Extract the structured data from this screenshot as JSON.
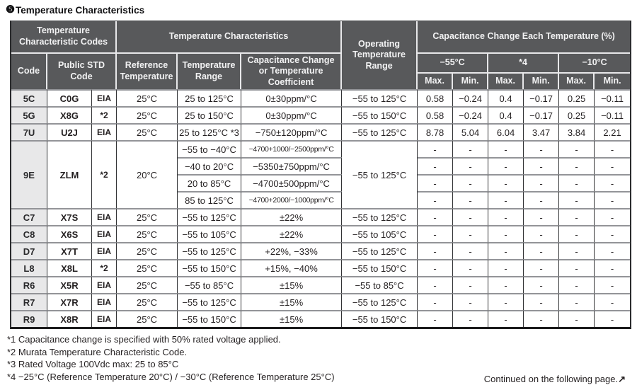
{
  "title": {
    "marker": "❺",
    "text": "Temperature Characteristics"
  },
  "table": {
    "header": {
      "codes_group": "Temperature Characteristic Codes",
      "characteristics_group": "Temperature Characteristics",
      "operating": "Operating Temperature Range",
      "cap_change_group": "Capacitance Change Each Temperature (%)",
      "code": "Code",
      "public_std_code": "Public STD Code",
      "reference_temperature": "Reference Temperature",
      "temperature_range": "Temperature Range",
      "cap_change_or_coeff": "Capacitance Change or Temperature Coefficient",
      "temp_cols": [
        "−55°C",
        "*4",
        "−10°C"
      ],
      "max_label": "Max.",
      "min_label": "Min."
    },
    "rows": [
      {
        "code": "5C",
        "std": "C0G",
        "mark": "EIA",
        "ref": "25°C",
        "op": "−55 to 125°C",
        "sub": [
          {
            "range": "25 to 125°C",
            "coeff": "0±30ppm/°C",
            "vals": [
              "0.58",
              "−0.24",
              "0.4",
              "−0.17",
              "0.25",
              "−0.11"
            ]
          }
        ]
      },
      {
        "code": "5G",
        "std": "X8G",
        "mark": "*2",
        "ref": "25°C",
        "op": "−55 to 150°C",
        "sub": [
          {
            "range": "25 to 150°C",
            "coeff": "0±30ppm/°C",
            "vals": [
              "0.58",
              "−0.24",
              "0.4",
              "−0.17",
              "0.25",
              "−0.11"
            ]
          }
        ]
      },
      {
        "code": "7U",
        "std": "U2J",
        "mark": "EIA",
        "ref": "25°C",
        "op": "−55 to 125°C",
        "sub": [
          {
            "range": "25 to 125°C *3",
            "coeff": "−750±120ppm/°C",
            "vals": [
              "8.78",
              "5.04",
              "6.04",
              "3.47",
              "3.84",
              "2.21"
            ]
          }
        ]
      },
      {
        "code": "9E",
        "std": "ZLM",
        "mark": "*2",
        "ref": "20°C",
        "op": "−55 to 125°C",
        "sub": [
          {
            "range": "−55 to −40°C",
            "coeff": "−4700+1000/−2500ppm/°C",
            "vals": [
              "-",
              "-",
              "-",
              "-",
              "-",
              "-"
            ]
          },
          {
            "range": "−40 to 20°C",
            "coeff": "−5350±750ppm/°C",
            "vals": [
              "-",
              "-",
              "-",
              "-",
              "-",
              "-"
            ]
          },
          {
            "range": "20 to 85°C",
            "coeff": "−4700±500ppm/°C",
            "vals": [
              "-",
              "-",
              "-",
              "-",
              "-",
              "-"
            ]
          },
          {
            "range": "85 to 125°C",
            "coeff": "−4700+2000/−1000ppm/°C",
            "vals": [
              "-",
              "-",
              "-",
              "-",
              "-",
              "-"
            ]
          }
        ]
      },
      {
        "code": "C7",
        "std": "X7S",
        "mark": "EIA",
        "ref": "25°C",
        "op": "−55 to 125°C",
        "sub": [
          {
            "range": "−55 to 125°C",
            "coeff": "±22%",
            "vals": [
              "-",
              "-",
              "-",
              "-",
              "-",
              "-"
            ]
          }
        ]
      },
      {
        "code": "C8",
        "std": "X6S",
        "mark": "EIA",
        "ref": "25°C",
        "op": "−55 to 105°C",
        "sub": [
          {
            "range": "−55 to 105°C",
            "coeff": "±22%",
            "vals": [
              "-",
              "-",
              "-",
              "-",
              "-",
              "-"
            ]
          }
        ]
      },
      {
        "code": "D7",
        "std": "X7T",
        "mark": "EIA",
        "ref": "25°C",
        "op": "−55 to 125°C",
        "sub": [
          {
            "range": "−55 to 125°C",
            "coeff": "+22%, −33%",
            "vals": [
              "-",
              "-",
              "-",
              "-",
              "-",
              "-"
            ]
          }
        ]
      },
      {
        "code": "L8",
        "std": "X8L",
        "mark": "*2",
        "ref": "25°C",
        "op": "−55 to 150°C",
        "sub": [
          {
            "range": "−55 to 150°C",
            "coeff": "+15%, −40%",
            "vals": [
              "-",
              "-",
              "-",
              "-",
              "-",
              "-"
            ]
          }
        ]
      },
      {
        "code": "R6",
        "std": "X5R",
        "mark": "EIA",
        "ref": "25°C",
        "op": "−55 to 85°C",
        "sub": [
          {
            "range": "−55 to 85°C",
            "coeff": "±15%",
            "vals": [
              "-",
              "-",
              "-",
              "-",
              "-",
              "-"
            ]
          }
        ]
      },
      {
        "code": "R7",
        "std": "X7R",
        "mark": "EIA",
        "ref": "25°C",
        "op": "−55 to 125°C",
        "sub": [
          {
            "range": "−55 to 125°C",
            "coeff": "±15%",
            "vals": [
              "-",
              "-",
              "-",
              "-",
              "-",
              "-"
            ]
          }
        ]
      },
      {
        "code": "R9",
        "std": "X8R",
        "mark": "EIA",
        "ref": "25°C",
        "op": "−55 to 150°C",
        "sub": [
          {
            "range": "−55 to 150°C",
            "coeff": "±15%",
            "vals": [
              "-",
              "-",
              "-",
              "-",
              "-",
              "-"
            ]
          }
        ]
      }
    ]
  },
  "footnotes": [
    "*1 Capacitance change is specified with 50% rated voltage applied.",
    "*2 Murata Temperature Characteristic Code.",
    "*3 Rated Voltage 100Vdc max: 25 to 85°C",
    "*4 −25°C (Reference Temperature 20°C) / −30°C (Reference Temperature 25°C)"
  ],
  "continued": {
    "text": "Continued on the following page.",
    "arrow_icon": "↗"
  }
}
